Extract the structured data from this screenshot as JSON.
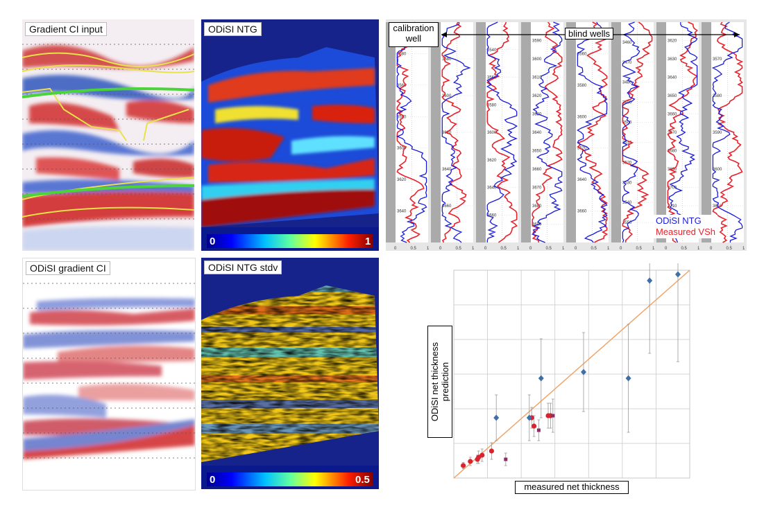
{
  "panels": {
    "gradient_ci_input": {
      "label": "Gradient CI input"
    },
    "odisi_ntg": {
      "label": "ODiSI NTG",
      "colorbar": {
        "min": "0",
        "max": "1"
      }
    },
    "odisi_gradient_ci": {
      "label": "ODiSI gradient CI"
    },
    "odisi_ntg_stdv": {
      "label": "ODiSI NTG stdv",
      "colorbar": {
        "min": "0",
        "max": "0.5"
      }
    }
  },
  "well_logs": {
    "calibration_label": "calibration\nwell",
    "blind_label": "blind wells",
    "legend": {
      "odisi": "ODiSI NTG",
      "measured": "Measured VSh"
    },
    "colors": {
      "odisi": "#1a1adb",
      "measured": "#e8212b"
    },
    "x_ticks": [
      "0",
      "0.5",
      "1"
    ],
    "tracks": [
      {
        "depths": [
          "3580",
          "3560",
          "3580",
          "3600",
          "3620",
          "3640"
        ]
      },
      {
        "depths": [
          "3580",
          "3600",
          "3620",
          "3640",
          "3660"
        ]
      },
      {
        "depths": [
          "3540",
          "3560",
          "3580",
          "3600",
          "3620",
          "3640",
          "3660"
        ]
      },
      {
        "depths": [
          "3590",
          "3600",
          "3610",
          "3620",
          "3630",
          "3640",
          "3650",
          "3660",
          "3670",
          "3680",
          "3690"
        ]
      },
      {
        "depths": [
          "3560",
          "3580",
          "3600",
          "3620",
          "3640",
          "3660"
        ]
      },
      {
        "depths": [
          "3460",
          "3470",
          "3480",
          "3490",
          "3500",
          "3510",
          "3520",
          "3530",
          "3540",
          "3550"
        ]
      },
      {
        "depths": [
          "3620",
          "3630",
          "3640",
          "3650",
          "3660",
          "3670",
          "3680",
          "3690",
          "3700",
          "3710",
          "3720"
        ]
      },
      {
        "depths": [
          "3570",
          "3580",
          "3590",
          "3600",
          "3610"
        ]
      }
    ]
  },
  "chart_data": {
    "type": "scatter",
    "title": "",
    "xlabel": "measured net thickness",
    "ylabel": "ODiSI net thickness prediction",
    "xlim": [
      0,
      10
    ],
    "ylim": [
      0,
      10
    ],
    "grid": true,
    "colors": {
      "calibration": "#d9232e",
      "blind": "#3f6fa5",
      "fit": "#f0a060"
    },
    "series": [
      {
        "marker": "circle",
        "points": [
          [
            0.4,
            0.6,
            0.15
          ],
          [
            0.7,
            0.8,
            0.2
          ],
          [
            1.0,
            0.9,
            0.2
          ],
          [
            1.05,
            1.0,
            0.3
          ],
          [
            1.2,
            1.1,
            0.3
          ],
          [
            1.6,
            1.3,
            0.4
          ],
          [
            3.4,
            2.5,
            0.5
          ],
          [
            4.0,
            3.0,
            0.6
          ],
          [
            4.1,
            3.0,
            0.6
          ],
          [
            3.3,
            2.9,
            0.5
          ]
        ]
      },
      {
        "marker": "square",
        "points": [
          [
            2.2,
            0.9,
            0.3
          ],
          [
            3.6,
            2.3,
            0.5
          ],
          [
            4.2,
            3.0,
            0.8
          ]
        ]
      },
      {
        "marker": "diamond",
        "points": [
          [
            1.8,
            2.9,
            1.1
          ],
          [
            3.2,
            2.9,
            1.1
          ],
          [
            3.7,
            4.8,
            1.9
          ],
          [
            5.5,
            5.1,
            1.9
          ],
          [
            7.4,
            4.8,
            2.6
          ],
          [
            8.3,
            9.5,
            3.5
          ],
          [
            9.5,
            9.8,
            4.2
          ]
        ]
      }
    ],
    "fit_line": [
      [
        0,
        0
      ],
      [
        10,
        10
      ]
    ]
  }
}
